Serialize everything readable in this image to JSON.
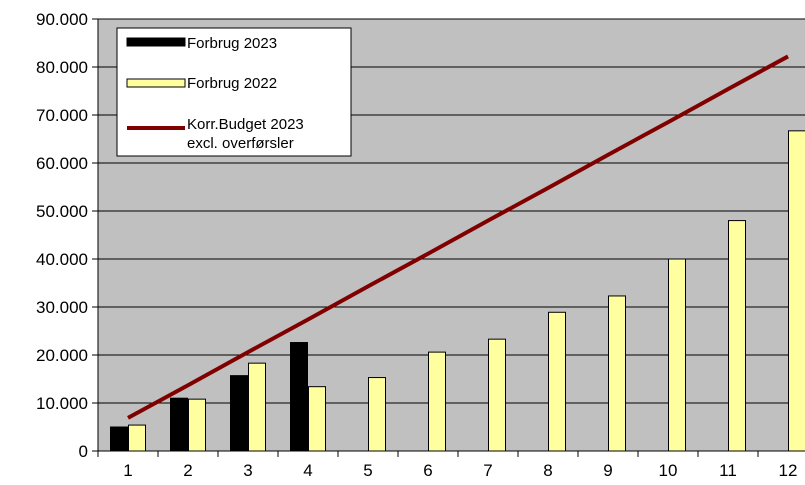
{
  "chart_data": {
    "type": "bar",
    "categories": [
      "1",
      "2",
      "3",
      "4",
      "5",
      "6",
      "7",
      "8",
      "9",
      "10",
      "11",
      "12"
    ],
    "series": [
      {
        "name": "Forbrug 2023",
        "kind": "bar",
        "color": "#000000",
        "values": [
          5000,
          11000,
          15700,
          22600,
          null,
          null,
          null,
          null,
          null,
          null,
          null,
          null
        ]
      },
      {
        "name": "Forbrug 2022",
        "kind": "bar",
        "color": "#ffffa0",
        "values": [
          5400,
          10800,
          18300,
          13400,
          15300,
          20600,
          23300,
          28900,
          32300,
          40000,
          48000,
          66700
        ]
      },
      {
        "name": "Korr.Budget 2023 excl. overførsler",
        "legend_lines": [
          "Korr.Budget 2023",
          "excl. overførsler"
        ],
        "kind": "line",
        "color": "#800000",
        "values": [
          6900,
          13700,
          20600,
          27400,
          34300,
          41100,
          48000,
          54800,
          61700,
          68500,
          75400,
          82200
        ]
      }
    ],
    "y_ticks": [
      "0",
      "10.000",
      "20.000",
      "30.000",
      "40.000",
      "50.000",
      "60.000",
      "70.000",
      "80.000",
      "90.000"
    ],
    "ylim": [
      0,
      90000
    ],
    "grid": true,
    "plot_background": "#c0c0c0",
    "legend_position": "top-left"
  }
}
